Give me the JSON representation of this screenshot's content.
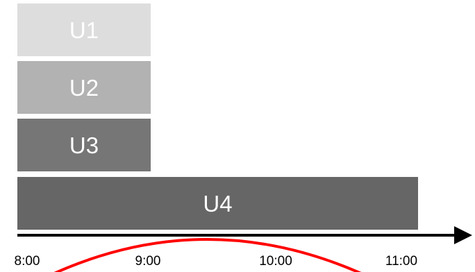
{
  "bars": [
    {
      "label": "U1",
      "color": "#dddddd"
    },
    {
      "label": "U2",
      "color": "#b2b2b2"
    },
    {
      "label": "U3",
      "color": "#767676"
    },
    {
      "label": "U4",
      "color": "#666666"
    }
  ],
  "axis": {
    "ticks": [
      "8:00",
      "9:00",
      "10:00",
      "11:00"
    ],
    "color": "#000000"
  },
  "arc": {
    "color": "#ff0000"
  }
}
